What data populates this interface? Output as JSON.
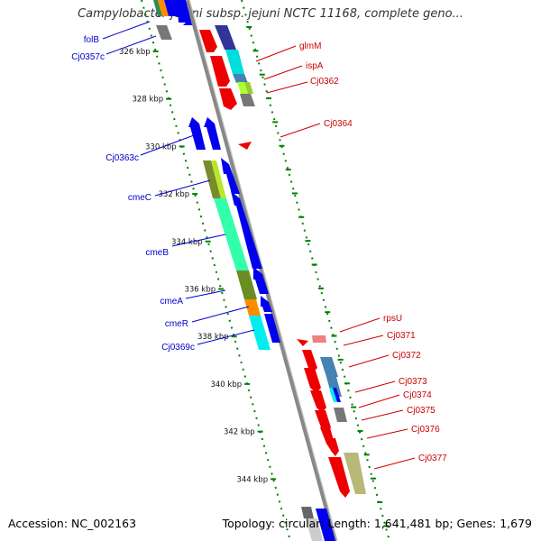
{
  "title": "Campylobacter jejuni subsp. jejuni NCTC 11168, complete geno...",
  "footer": {
    "accession": "Accession: NC_002163",
    "topology": "Topology: circular; Length: 1,641,481 bp; Genes: 1,679"
  },
  "colors": {
    "backbone": "#888888",
    "ticks": "#008000",
    "left_labels": "#0000cc",
    "right_labels": "#cc0000"
  },
  "scale": {
    "tick_labels": [
      "326 kbp",
      "328 kbp",
      "330 kbp",
      "332 kbp",
      "334 kbp",
      "336 kbp",
      "338 kbp",
      "340 kbp",
      "342 kbp",
      "344 kbp"
    ]
  },
  "left_genes": [
    "folB",
    "Cj0357c",
    "Cj0363c",
    "cmeC",
    "cmeB",
    "cmeA",
    "cmeR",
    "Cj0369c"
  ],
  "right_genes": [
    "glmM",
    "ispA",
    "Cj0362",
    "Cj0364",
    "rpsU",
    "Cj0371",
    "Cj0372",
    "Cj0373",
    "Cj0374",
    "Cj0375",
    "Cj0376",
    "Cj0377"
  ]
}
